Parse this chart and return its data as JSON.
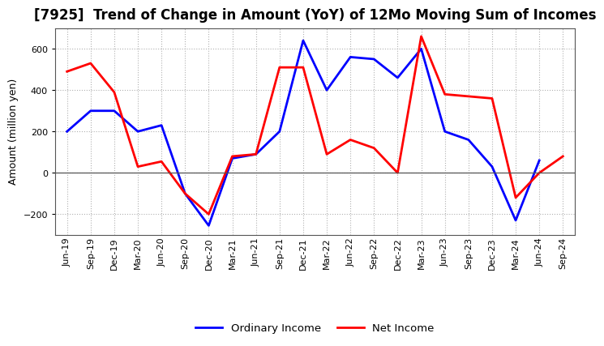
{
  "title": "[7925]  Trend of Change in Amount (YoY) of 12Mo Moving Sum of Incomes",
  "ylabel": "Amount (million yen)",
  "x_labels": [
    "Jun-19",
    "Sep-19",
    "Dec-19",
    "Mar-20",
    "Jun-20",
    "Sep-20",
    "Dec-20",
    "Mar-21",
    "Jun-21",
    "Sep-21",
    "Dec-21",
    "Mar-22",
    "Jun-22",
    "Sep-22",
    "Dec-22",
    "Mar-23",
    "Jun-23",
    "Sep-23",
    "Dec-23",
    "Mar-24",
    "Jun-24",
    "Sep-24"
  ],
  "ordinary_income": [
    200,
    300,
    300,
    200,
    230,
    -100,
    -255,
    70,
    90,
    200,
    640,
    400,
    560,
    550,
    460,
    600,
    200,
    160,
    30,
    -230,
    60,
    null
  ],
  "net_income": [
    490,
    530,
    390,
    30,
    55,
    -100,
    -200,
    80,
    90,
    510,
    510,
    90,
    160,
    120,
    0,
    660,
    380,
    370,
    360,
    -120,
    0,
    80
  ],
  "ordinary_color": "#0000ff",
  "net_color": "#ff0000",
  "bg_color": "#ffffff",
  "plot_bg_color": "#f5f5f5",
  "grid_color": "#b0b0b0",
  "ylim": [
    -300,
    700
  ],
  "yticks": [
    -200,
    0,
    200,
    400,
    600
  ],
  "legend_labels": [
    "Ordinary Income",
    "Net Income"
  ],
  "title_fontsize": 12,
  "axis_fontsize": 9,
  "tick_fontsize": 8,
  "line_width": 2.0
}
